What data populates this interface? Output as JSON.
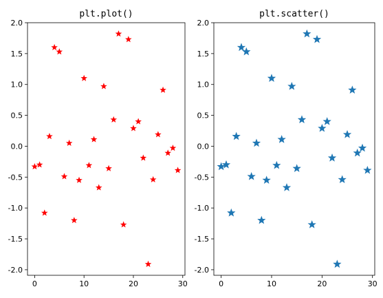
{
  "chart_data": [
    {
      "type": "scatter",
      "title": "plt.plot()",
      "marker": "star",
      "color": "#ff0000",
      "xlim": [
        -1.45,
        30.45
      ],
      "ylim": [
        -2.09,
        2.0
      ],
      "xticks": [
        0,
        10,
        20,
        30
      ],
      "yticks": [
        -2.0,
        -1.5,
        -1.0,
        -0.5,
        0.0,
        0.5,
        1.0,
        1.5,
        2.0
      ],
      "xtick_labels": [
        "0",
        "10",
        "20",
        "30"
      ],
      "ytick_labels": [
        "-2.0",
        "-1.5",
        "-1.0",
        "-0.5",
        "0.0",
        "0.5",
        "1.0",
        "1.5",
        "2.0"
      ],
      "grid": false,
      "x": [
        0,
        1,
        2,
        3,
        4,
        5,
        6,
        7,
        8,
        9,
        10,
        11,
        12,
        13,
        14,
        15,
        16,
        17,
        18,
        19,
        20,
        21,
        22,
        23,
        24,
        25,
        26,
        27,
        28,
        29
      ],
      "y": [
        -0.33,
        -0.3,
        -1.08,
        0.16,
        1.6,
        1.53,
        -0.49,
        0.05,
        -1.2,
        -0.55,
        1.1,
        -0.31,
        0.11,
        -0.67,
        0.97,
        -0.36,
        0.43,
        1.82,
        -1.27,
        1.73,
        0.29,
        0.4,
        -0.19,
        -1.91,
        -0.54,
        0.19,
        0.91,
        -0.11,
        -0.03,
        -0.39
      ]
    },
    {
      "type": "scatter",
      "title": "plt.scatter()",
      "marker": "star",
      "color": "#1f77b4",
      "xlim": [
        -1.45,
        30.45
      ],
      "ylim": [
        -2.09,
        2.0
      ],
      "xticks": [
        0,
        10,
        20,
        30
      ],
      "yticks": [
        -2.0,
        -1.5,
        -1.0,
        -0.5,
        0.0,
        0.5,
        1.0,
        1.5,
        2.0
      ],
      "xtick_labels": [
        "0",
        "10",
        "20",
        "30"
      ],
      "ytick_labels": [
        "-2.0",
        "-1.5",
        "-1.0",
        "-0.5",
        "0.0",
        "0.5",
        "1.0",
        "1.5",
        "2.0"
      ],
      "grid": false,
      "x": [
        0,
        1,
        2,
        3,
        4,
        5,
        6,
        7,
        8,
        9,
        10,
        11,
        12,
        13,
        14,
        15,
        16,
        17,
        18,
        19,
        20,
        21,
        22,
        23,
        24,
        25,
        26,
        27,
        28,
        29
      ],
      "y": [
        -0.33,
        -0.3,
        -1.08,
        0.16,
        1.6,
        1.53,
        -0.49,
        0.05,
        -1.2,
        -0.55,
        1.1,
        -0.31,
        0.11,
        -0.67,
        0.97,
        -0.36,
        0.43,
        1.82,
        -1.27,
        1.73,
        0.29,
        0.4,
        -0.19,
        -1.91,
        -0.54,
        0.19,
        0.91,
        -0.11,
        -0.03,
        -0.39
      ]
    }
  ]
}
